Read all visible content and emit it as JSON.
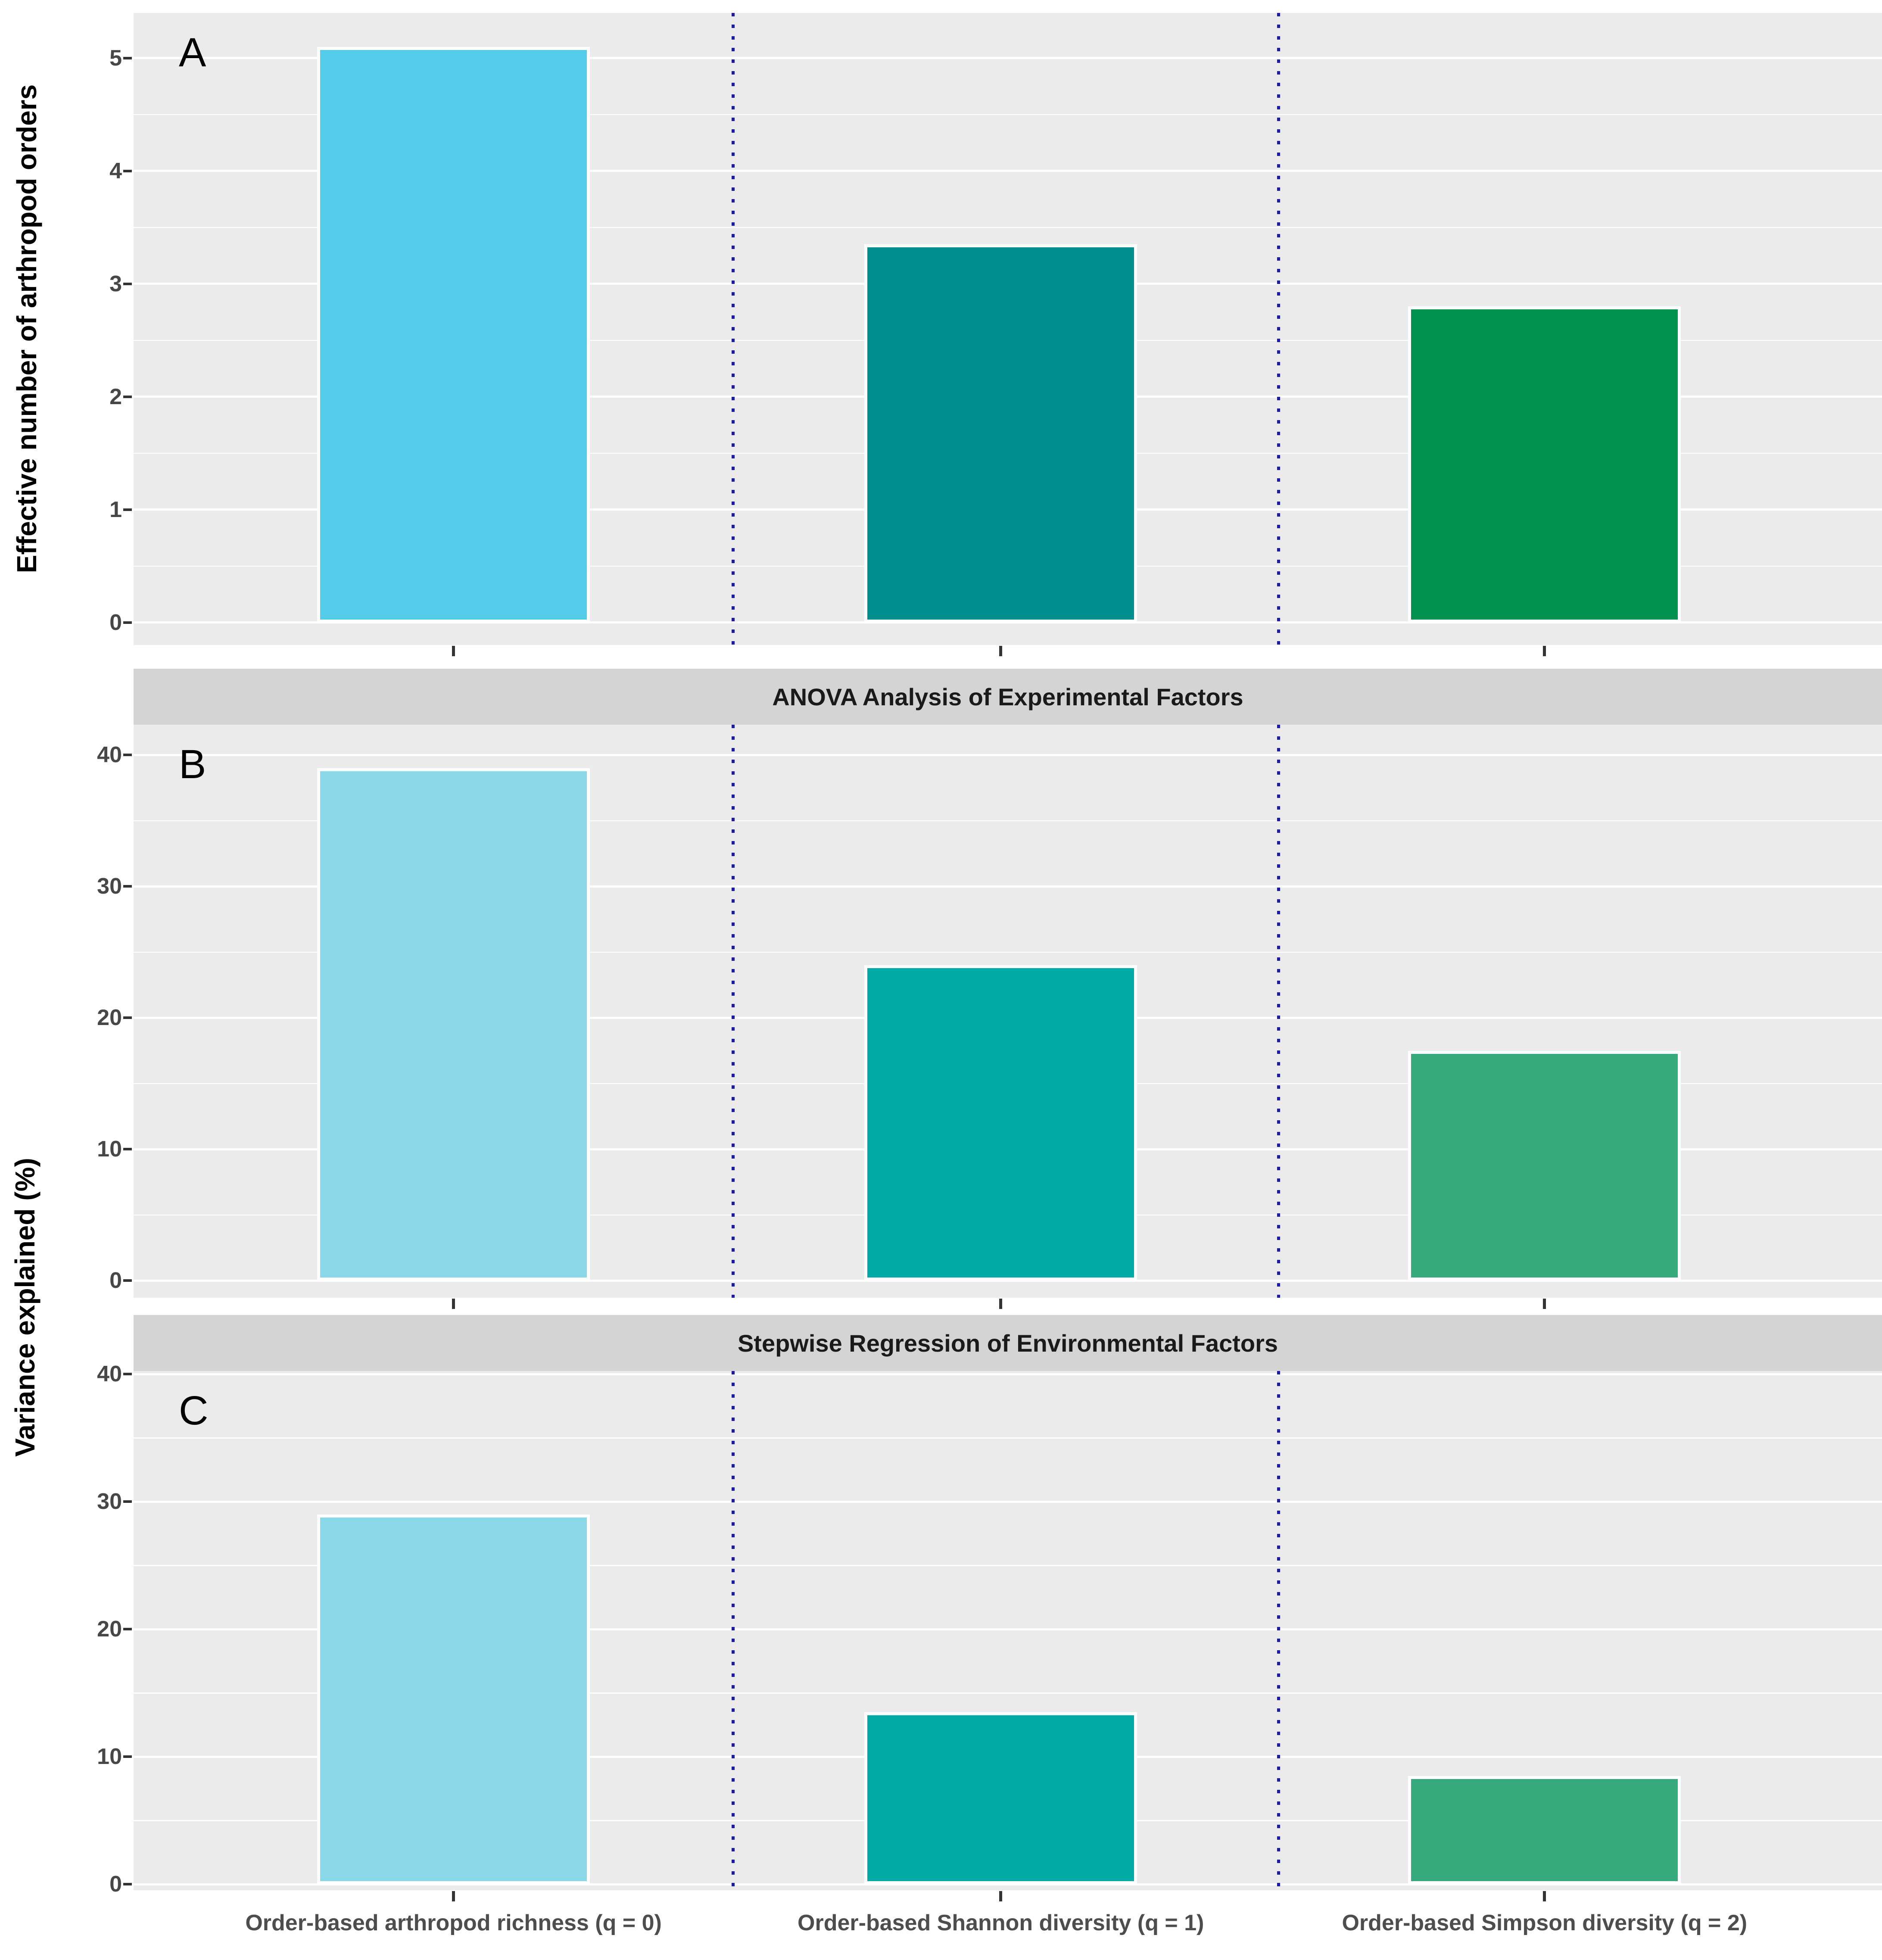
{
  "chart_data": {
    "type": "bar",
    "title": "",
    "categories": [
      "Order-based arthropod richness (q = 0)",
      "Order-based Shannon diversity (q = 1)",
      "Order-based Simpson diversity (q = 2)"
    ],
    "shared_y_axis_title": "Variance explained (%)",
    "legend_position": "none",
    "grid": true,
    "separator_lines": {
      "style": "dotted",
      "color": "#1C1C9E",
      "description": "vertical dotted navy lines between category columns"
    },
    "panels": [
      {
        "label": "A",
        "strip_title": "",
        "y_axis_title": "Effective number of arthropod orders",
        "values": [
          5.1,
          3.35,
          2.8
        ],
        "bar_colors": [
          "#54CBE8",
          "#008F8F",
          "#00914E"
        ],
        "yticks": [
          0,
          1,
          2,
          3,
          4,
          5
        ],
        "ytick_labels": [
          "0",
          "1",
          "2",
          "3",
          "4",
          "5"
        ],
        "minor_ticks": [
          0.5,
          1.5,
          2.5,
          3.5,
          4.5
        ],
        "ylim": [
          -0.2,
          5.4
        ]
      },
      {
        "label": "B",
        "strip_title": "ANOVA Analysis of Experimental Factors",
        "y_axis_title": "Variance explained (%)",
        "values": [
          39,
          24,
          17.5
        ],
        "bar_colors": [
          "#8AD7E8",
          "#00ABA8",
          "#36A97D"
        ],
        "yticks": [
          0,
          10,
          20,
          30,
          40
        ],
        "ytick_labels": [
          "0",
          "10",
          "20",
          "30",
          "40"
        ],
        "minor_ticks": [
          5,
          15,
          25,
          35
        ],
        "ylim": [
          -1.3,
          42.3
        ]
      },
      {
        "label": "C",
        "strip_title": "Stepwise Regression of Environmental Factors",
        "y_axis_title": "Variance explained (%)",
        "values": [
          29,
          13.5,
          8.5
        ],
        "bar_colors": [
          "#8AD7E8",
          "#00ABA8",
          "#36A97D"
        ],
        "yticks": [
          0,
          10,
          20,
          30,
          40
        ],
        "ytick_labels": [
          "0",
          "10",
          "20",
          "30",
          "40"
        ],
        "minor_ticks": [
          5,
          15,
          25,
          35
        ],
        "ylim": [
          -0.46,
          40.24
        ]
      }
    ]
  },
  "colors": {
    "page_background": "#FFFFFF",
    "panel_background": "#EBEBEB",
    "strip_background": "#D4D4D4",
    "gridline": "#FFFFFF",
    "tick_mark": "#333333",
    "ytick_label": "#474747",
    "x_label": "#4D4D4D",
    "axis_title": "#000000",
    "strip_text": "#1A1A1A",
    "separator": "#1C1C9E"
  }
}
